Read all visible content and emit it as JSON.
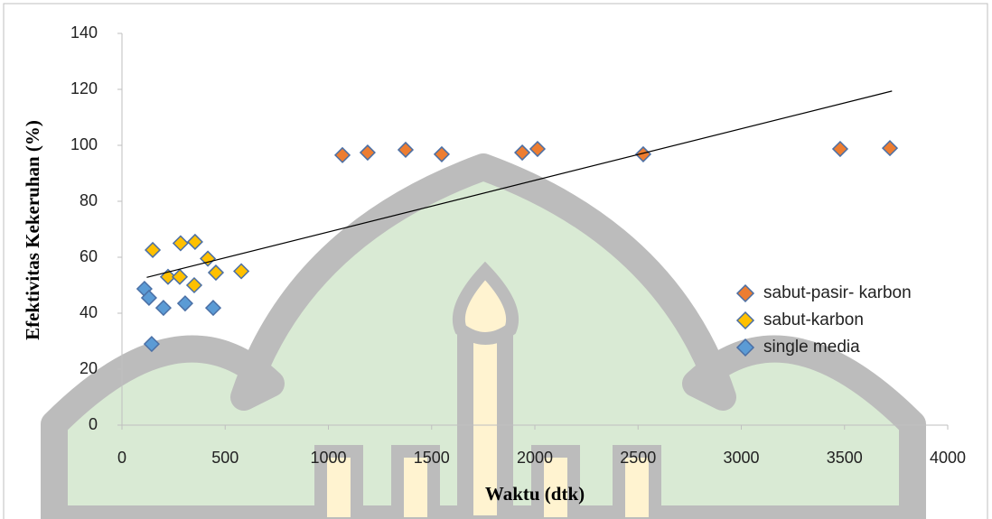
{
  "chart_data": {
    "type": "scatter",
    "x_label": "Waktu (dtk)",
    "y_label": "Efektivitas Kekeruhan (%)",
    "xlim": [
      0,
      4000
    ],
    "xticks": [
      0,
      500,
      1000,
      1500,
      2000,
      2500,
      3000,
      3500,
      4000
    ],
    "ylim": [
      0,
      140
    ],
    "yticks": [
      0,
      20,
      40,
      60,
      80,
      100,
      120,
      140
    ],
    "legend": "right",
    "series": [
      {
        "name": "sabut-pasir- karbon",
        "color": "#ed7d31",
        "x": [
          1068,
          1190,
          1374,
          1549,
          1939,
          2013,
          2525,
          3479,
          3720
        ],
        "values": [
          96.5,
          97.4,
          98.4,
          96.8,
          97.4,
          98.7,
          96.8,
          98.7,
          99.0
        ]
      },
      {
        "name": "sabut-karbon",
        "color": "#ffc000",
        "x": [
          149,
          223,
          284,
          280,
          354,
          350,
          416,
          455,
          578
        ],
        "values": [
          62.6,
          53,
          65,
          53,
          65.5,
          50,
          59.5,
          54.5,
          55
        ]
      },
      {
        "name": "single media",
        "color": "#5b9bd5",
        "x": [
          109,
          131,
          201,
          306,
          442,
          144
        ],
        "values": [
          48.7,
          45.5,
          41.9,
          43.5,
          41.9,
          29
        ]
      }
    ],
    "trendline": {
      "color": "#000000",
      "x": [
        120,
        3730
      ],
      "values": [
        52.8,
        119.4
      ]
    }
  }
}
